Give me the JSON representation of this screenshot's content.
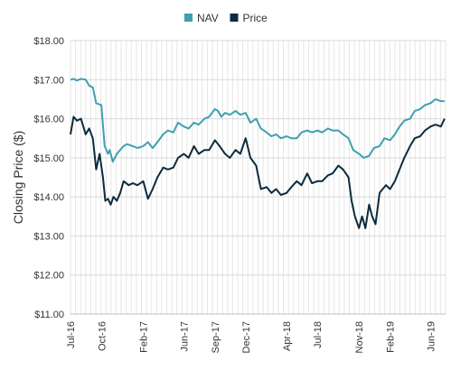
{
  "chart_data": {
    "type": "line",
    "ylabel": "Closing Price ($)",
    "xlabel": "",
    "ylim": [
      11,
      18
    ],
    "yticks": [
      "$11.00",
      "$12.00",
      "$13.00",
      "$14.00",
      "$15.00",
      "$16.00",
      "$17.00",
      "$18.00"
    ],
    "xlim": [
      "2016-07-01",
      "2019-07-15"
    ],
    "xticks": [
      {
        "label": "Jul-16",
        "date": "2016-07-01"
      },
      {
        "label": "Oct-16",
        "date": "2016-10-01"
      },
      {
        "label": "Feb-17",
        "date": "2017-02-01"
      },
      {
        "label": "Jun-17",
        "date": "2017-06-01"
      },
      {
        "label": "Sep-17",
        "date": "2017-09-01"
      },
      {
        "label": "Dec-17",
        "date": "2017-12-01"
      },
      {
        "label": "Apr-18",
        "date": "2018-04-01"
      },
      {
        "label": "Jul-18",
        "date": "2018-07-01"
      },
      {
        "label": "Nov-18",
        "date": "2018-11-01"
      },
      {
        "label": "Feb-19",
        "date": "2019-02-01"
      },
      {
        "label": "Jun-19",
        "date": "2019-06-01"
      }
    ],
    "grid": true,
    "legend_position": "top-center",
    "series": [
      {
        "name": "NAV",
        "color": "#3fa0b0",
        "points": [
          [
            "2016-07-01",
            17.0
          ],
          [
            "2016-07-10",
            17.02
          ],
          [
            "2016-07-20",
            16.98
          ],
          [
            "2016-08-01",
            17.02
          ],
          [
            "2016-08-15",
            17.0
          ],
          [
            "2016-08-25",
            16.85
          ],
          [
            "2016-09-05",
            16.8
          ],
          [
            "2016-09-15",
            16.4
          ],
          [
            "2016-09-30",
            16.35
          ],
          [
            "2016-10-10",
            15.3
          ],
          [
            "2016-10-20",
            15.1
          ],
          [
            "2016-10-25",
            15.2
          ],
          [
            "2016-11-03",
            14.9
          ],
          [
            "2016-11-15",
            15.1
          ],
          [
            "2016-11-25",
            15.2
          ],
          [
            "2016-12-05",
            15.3
          ],
          [
            "2016-12-15",
            15.35
          ],
          [
            "2017-01-01",
            15.3
          ],
          [
            "2017-01-15",
            15.25
          ],
          [
            "2017-02-01",
            15.3
          ],
          [
            "2017-02-15",
            15.4
          ],
          [
            "2017-03-01",
            15.25
          ],
          [
            "2017-03-15",
            15.4
          ],
          [
            "2017-04-01",
            15.6
          ],
          [
            "2017-04-15",
            15.7
          ],
          [
            "2017-05-01",
            15.65
          ],
          [
            "2017-05-15",
            15.9
          ],
          [
            "2017-06-01",
            15.8
          ],
          [
            "2017-06-15",
            15.75
          ],
          [
            "2017-07-01",
            15.9
          ],
          [
            "2017-07-15",
            15.85
          ],
          [
            "2017-08-01",
            16.0
          ],
          [
            "2017-08-15",
            16.05
          ],
          [
            "2017-09-01",
            16.25
          ],
          [
            "2017-09-10",
            16.2
          ],
          [
            "2017-09-20",
            16.05
          ],
          [
            "2017-10-01",
            16.15
          ],
          [
            "2017-10-15",
            16.1
          ],
          [
            "2017-11-01",
            16.2
          ],
          [
            "2017-11-15",
            16.1
          ],
          [
            "2017-12-01",
            16.15
          ],
          [
            "2017-12-15",
            15.9
          ],
          [
            "2018-01-01",
            16.0
          ],
          [
            "2018-01-15",
            15.75
          ],
          [
            "2018-02-01",
            15.65
          ],
          [
            "2018-02-15",
            15.55
          ],
          [
            "2018-03-01",
            15.6
          ],
          [
            "2018-03-15",
            15.5
          ],
          [
            "2018-04-01",
            15.55
          ],
          [
            "2018-04-15",
            15.5
          ],
          [
            "2018-05-01",
            15.5
          ],
          [
            "2018-05-15",
            15.65
          ],
          [
            "2018-06-01",
            15.7
          ],
          [
            "2018-06-15",
            15.65
          ],
          [
            "2018-07-01",
            15.7
          ],
          [
            "2018-07-15",
            15.65
          ],
          [
            "2018-08-01",
            15.75
          ],
          [
            "2018-08-15",
            15.7
          ],
          [
            "2018-09-01",
            15.7
          ],
          [
            "2018-09-15",
            15.6
          ],
          [
            "2018-10-01",
            15.5
          ],
          [
            "2018-10-15",
            15.2
          ],
          [
            "2018-11-01",
            15.1
          ],
          [
            "2018-11-15",
            15.0
          ],
          [
            "2018-12-01",
            15.05
          ],
          [
            "2018-12-15",
            15.25
          ],
          [
            "2019-01-01",
            15.3
          ],
          [
            "2019-01-15",
            15.5
          ],
          [
            "2019-02-01",
            15.45
          ],
          [
            "2019-02-15",
            15.6
          ],
          [
            "2019-03-01",
            15.8
          ],
          [
            "2019-03-15",
            15.95
          ],
          [
            "2019-04-01",
            16.0
          ],
          [
            "2019-04-15",
            16.2
          ],
          [
            "2019-05-01",
            16.25
          ],
          [
            "2019-05-15",
            16.35
          ],
          [
            "2019-06-01",
            16.4
          ],
          [
            "2019-06-15",
            16.5
          ],
          [
            "2019-07-01",
            16.45
          ],
          [
            "2019-07-12",
            16.45
          ]
        ]
      },
      {
        "name": "Price",
        "color": "#0d2b3e",
        "points": [
          [
            "2016-07-01",
            15.6
          ],
          [
            "2016-07-10",
            16.05
          ],
          [
            "2016-07-20",
            15.95
          ],
          [
            "2016-08-01",
            16.0
          ],
          [
            "2016-08-15",
            15.6
          ],
          [
            "2016-08-25",
            15.75
          ],
          [
            "2016-09-05",
            15.5
          ],
          [
            "2016-09-15",
            14.7
          ],
          [
            "2016-09-25",
            15.1
          ],
          [
            "2016-10-05",
            14.5
          ],
          [
            "2016-10-12",
            13.9
          ],
          [
            "2016-10-20",
            13.95
          ],
          [
            "2016-10-28",
            13.8
          ],
          [
            "2016-11-05",
            14.0
          ],
          [
            "2016-11-15",
            13.9
          ],
          [
            "2016-11-25",
            14.1
          ],
          [
            "2016-12-05",
            14.4
          ],
          [
            "2016-12-20",
            14.3
          ],
          [
            "2017-01-01",
            14.35
          ],
          [
            "2017-01-15",
            14.3
          ],
          [
            "2017-02-01",
            14.4
          ],
          [
            "2017-02-15",
            13.95
          ],
          [
            "2017-03-01",
            14.2
          ],
          [
            "2017-03-15",
            14.5
          ],
          [
            "2017-04-01",
            14.75
          ],
          [
            "2017-04-15",
            14.7
          ],
          [
            "2017-05-01",
            14.75
          ],
          [
            "2017-05-15",
            15.0
          ],
          [
            "2017-06-01",
            15.1
          ],
          [
            "2017-06-15",
            15.0
          ],
          [
            "2017-07-01",
            15.3
          ],
          [
            "2017-07-15",
            15.1
          ],
          [
            "2017-08-01",
            15.2
          ],
          [
            "2017-08-15",
            15.2
          ],
          [
            "2017-09-01",
            15.45
          ],
          [
            "2017-09-15",
            15.3
          ],
          [
            "2017-10-01",
            15.1
          ],
          [
            "2017-10-15",
            15.0
          ],
          [
            "2017-11-01",
            15.2
          ],
          [
            "2017-11-15",
            15.1
          ],
          [
            "2017-12-01",
            15.5
          ],
          [
            "2017-12-15",
            15.0
          ],
          [
            "2018-01-01",
            14.8
          ],
          [
            "2018-01-15",
            14.2
          ],
          [
            "2018-02-01",
            14.25
          ],
          [
            "2018-02-15",
            14.1
          ],
          [
            "2018-03-01",
            14.2
          ],
          [
            "2018-03-15",
            14.05
          ],
          [
            "2018-04-01",
            14.1
          ],
          [
            "2018-04-15",
            14.25
          ],
          [
            "2018-05-01",
            14.4
          ],
          [
            "2018-05-15",
            14.3
          ],
          [
            "2018-06-01",
            14.6
          ],
          [
            "2018-06-15",
            14.35
          ],
          [
            "2018-07-01",
            14.4
          ],
          [
            "2018-07-15",
            14.4
          ],
          [
            "2018-08-01",
            14.55
          ],
          [
            "2018-08-15",
            14.6
          ],
          [
            "2018-09-01",
            14.8
          ],
          [
            "2018-09-15",
            14.7
          ],
          [
            "2018-10-01",
            14.5
          ],
          [
            "2018-10-10",
            13.9
          ],
          [
            "2018-10-20",
            13.5
          ],
          [
            "2018-11-01",
            13.2
          ],
          [
            "2018-11-10",
            13.5
          ],
          [
            "2018-11-20",
            13.2
          ],
          [
            "2018-12-01",
            13.8
          ],
          [
            "2018-12-10",
            13.5
          ],
          [
            "2018-12-20",
            13.3
          ],
          [
            "2019-01-01",
            14.1
          ],
          [
            "2019-01-10",
            14.2
          ],
          [
            "2019-01-20",
            14.3
          ],
          [
            "2019-02-01",
            14.2
          ],
          [
            "2019-02-15",
            14.4
          ],
          [
            "2019-03-01",
            14.7
          ],
          [
            "2019-03-15",
            15.0
          ],
          [
            "2019-04-01",
            15.3
          ],
          [
            "2019-04-15",
            15.5
          ],
          [
            "2019-05-01",
            15.55
          ],
          [
            "2019-05-15",
            15.7
          ],
          [
            "2019-06-01",
            15.8
          ],
          [
            "2019-06-15",
            15.85
          ],
          [
            "2019-07-01",
            15.8
          ],
          [
            "2019-07-12",
            16.0
          ]
        ]
      }
    ]
  }
}
